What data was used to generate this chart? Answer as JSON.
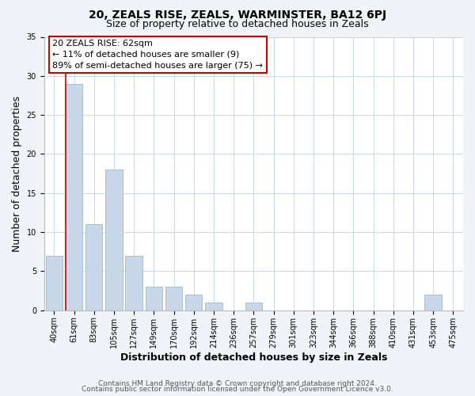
{
  "title": "20, ZEALS RISE, ZEALS, WARMINSTER, BA12 6PJ",
  "subtitle": "Size of property relative to detached houses in Zeals",
  "xlabel": "Distribution of detached houses by size in Zeals",
  "ylabel": "Number of detached properties",
  "bar_labels": [
    "40sqm",
    "61sqm",
    "83sqm",
    "105sqm",
    "127sqm",
    "149sqm",
    "170sqm",
    "192sqm",
    "214sqm",
    "236sqm",
    "257sqm",
    "279sqm",
    "301sqm",
    "323sqm",
    "344sqm",
    "366sqm",
    "388sqm",
    "410sqm",
    "431sqm",
    "453sqm",
    "475sqm"
  ],
  "bar_values": [
    7,
    29,
    11,
    18,
    7,
    3,
    3,
    2,
    1,
    0,
    1,
    0,
    0,
    0,
    0,
    0,
    0,
    0,
    0,
    2,
    0
  ],
  "bar_color": "#c8d8e8",
  "bar_edge_color": "#a0b8cc",
  "vline_color": "#cc0000",
  "vline_position": 0.575,
  "ylim": [
    0,
    35
  ],
  "yticks": [
    0,
    5,
    10,
    15,
    20,
    25,
    30,
    35
  ],
  "annotation_title": "20 ZEALS RISE: 62sqm",
  "annotation_line1": "← 11% of detached houses are smaller (9)",
  "annotation_line2": "89% of semi-detached houses are larger (75) →",
  "footer1": "Contains HM Land Registry data © Crown copyright and database right 2024.",
  "footer2": "Contains public sector information licensed under the Open Government Licence v3.0.",
  "background_color": "#f0f4f8",
  "plot_background": "#ffffff",
  "grid_color": "#c8d8e8",
  "title_fontsize": 10,
  "subtitle_fontsize": 9,
  "axis_label_fontsize": 9,
  "tick_fontsize": 7,
  "annotation_fontsize": 8,
  "footer_fontsize": 6.5
}
